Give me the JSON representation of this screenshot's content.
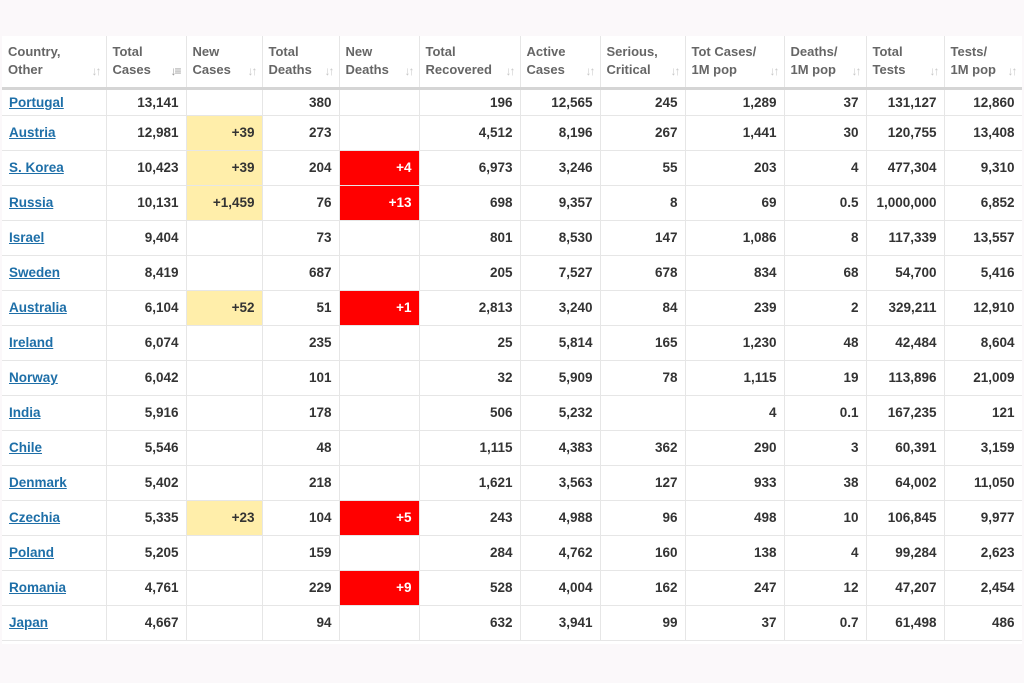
{
  "header": [
    {
      "l1": "Country,",
      "l2": "Other"
    },
    {
      "l1": "Total",
      "l2": "Cases",
      "active": true
    },
    {
      "l1": "New",
      "l2": "Cases"
    },
    {
      "l1": "Total",
      "l2": "Deaths"
    },
    {
      "l1": "New",
      "l2": "Deaths"
    },
    {
      "l1": "Total",
      "l2": "Recovered"
    },
    {
      "l1": "Active",
      "l2": "Cases"
    },
    {
      "l1": "Serious,",
      "l2": "Critical"
    },
    {
      "l1": "Tot Cases/",
      "l2": "1M pop"
    },
    {
      "l1": "Deaths/",
      "l2": "1M pop"
    },
    {
      "l1": "Total",
      "l2": "Tests"
    },
    {
      "l1": "Tests/",
      "l2": "1M pop"
    }
  ],
  "rows": [
    [
      "Portugal",
      "13,141",
      "",
      "380",
      "",
      "196",
      "12,565",
      "245",
      "1,289",
      "37",
      "131,127",
      "12,860"
    ],
    [
      "Austria",
      "12,981",
      "+39",
      "273",
      "",
      "4,512",
      "8,196",
      "267",
      "1,441",
      "30",
      "120,755",
      "13,408"
    ],
    [
      "S. Korea",
      "10,423",
      "+39",
      "204",
      "+4",
      "6,973",
      "3,246",
      "55",
      "203",
      "4",
      "477,304",
      "9,310"
    ],
    [
      "Russia",
      "10,131",
      "+1,459",
      "76",
      "+13",
      "698",
      "9,357",
      "8",
      "69",
      "0.5",
      "1,000,000",
      "6,852"
    ],
    [
      "Israel",
      "9,404",
      "",
      "73",
      "",
      "801",
      "8,530",
      "147",
      "1,086",
      "8",
      "117,339",
      "13,557"
    ],
    [
      "Sweden",
      "8,419",
      "",
      "687",
      "",
      "205",
      "7,527",
      "678",
      "834",
      "68",
      "54,700",
      "5,416"
    ],
    [
      "Australia",
      "6,104",
      "+52",
      "51",
      "+1",
      "2,813",
      "3,240",
      "84",
      "239",
      "2",
      "329,211",
      "12,910"
    ],
    [
      "Ireland",
      "6,074",
      "",
      "235",
      "",
      "25",
      "5,814",
      "165",
      "1,230",
      "48",
      "42,484",
      "8,604"
    ],
    [
      "Norway",
      "6,042",
      "",
      "101",
      "",
      "32",
      "5,909",
      "78",
      "1,115",
      "19",
      "113,896",
      "21,009"
    ],
    [
      "India",
      "5,916",
      "",
      "178",
      "",
      "506",
      "5,232",
      "",
      "4",
      "0.1",
      "167,235",
      "121"
    ],
    [
      "Chile",
      "5,546",
      "",
      "48",
      "",
      "1,115",
      "4,383",
      "362",
      "290",
      "3",
      "60,391",
      "3,159"
    ],
    [
      "Denmark",
      "5,402",
      "",
      "218",
      "",
      "1,621",
      "3,563",
      "127",
      "933",
      "38",
      "64,002",
      "11,050"
    ],
    [
      "Czechia",
      "5,335",
      "+23",
      "104",
      "+5",
      "243",
      "4,988",
      "96",
      "498",
      "10",
      "106,845",
      "9,977"
    ],
    [
      "Poland",
      "5,205",
      "",
      "159",
      "",
      "284",
      "4,762",
      "160",
      "138",
      "4",
      "99,284",
      "2,623"
    ],
    [
      "Romania",
      "4,761",
      "",
      "229",
      "+9",
      "528",
      "4,004",
      "162",
      "247",
      "12",
      "47,207",
      "2,454"
    ],
    [
      "Japan",
      "4,667",
      "",
      "94",
      "",
      "632",
      "3,941",
      "99",
      "37",
      "0.7",
      "61,498",
      "486"
    ]
  ],
  "colors": {
    "new_cases_bg": "#ffeeaa",
    "new_deaths_bg": "#ff0000",
    "link": "#1e6fa8"
  },
  "icons": {
    "sort": "sort-arrows-icon",
    "sort_active": "sort-desc-icon"
  }
}
